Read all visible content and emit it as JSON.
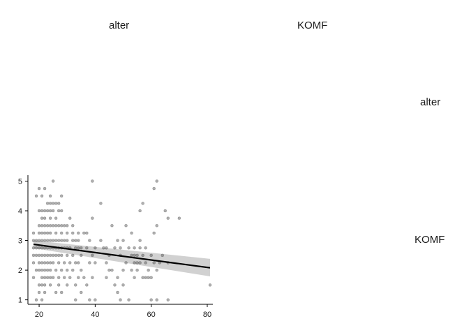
{
  "facets": {
    "column_labels": [
      "alter",
      "KOMF"
    ],
    "row_labels": [
      "alter",
      "KOMF"
    ]
  },
  "chart_data": {
    "type": "scatter",
    "title": "",
    "xlabel": "",
    "ylabel": "",
    "xlim": [
      16,
      82
    ],
    "ylim": [
      0.85,
      5.2
    ],
    "x_ticks": [
      20,
      40,
      60,
      80
    ],
    "y_ticks": [
      1,
      2,
      3,
      4,
      5
    ],
    "grid": false,
    "point_color": "#4d4d4d",
    "points": [
      [
        18,
        1.75
      ],
      [
        18,
        2.25
      ],
      [
        18,
        2.5
      ],
      [
        18,
        2.75
      ],
      [
        18,
        3
      ],
      [
        18,
        3.25
      ],
      [
        19,
        1
      ],
      [
        19,
        2
      ],
      [
        19,
        2.5
      ],
      [
        19,
        2.75
      ],
      [
        19,
        3
      ],
      [
        19,
        4.5
      ],
      [
        20,
        1.25
      ],
      [
        20,
        1.5
      ],
      [
        20,
        2
      ],
      [
        20,
        2.25
      ],
      [
        20,
        2.5
      ],
      [
        20,
        2.75
      ],
      [
        20,
        3
      ],
      [
        20,
        3.25
      ],
      [
        20,
        3.5
      ],
      [
        20,
        4
      ],
      [
        20,
        4.75
      ],
      [
        21,
        1
      ],
      [
        21,
        1.5
      ],
      [
        21,
        1.75
      ],
      [
        21,
        2
      ],
      [
        21,
        2.25
      ],
      [
        21,
        2.5
      ],
      [
        21,
        2.75
      ],
      [
        21,
        3
      ],
      [
        21,
        3.25
      ],
      [
        21,
        3.5
      ],
      [
        21,
        3.75
      ],
      [
        21,
        4
      ],
      [
        21,
        4.5
      ],
      [
        22,
        1.25
      ],
      [
        22,
        1.5
      ],
      [
        22,
        1.75
      ],
      [
        22,
        2
      ],
      [
        22,
        2.25
      ],
      [
        22,
        2.5
      ],
      [
        22,
        2.75
      ],
      [
        22,
        3
      ],
      [
        22,
        3.25
      ],
      [
        22,
        3.5
      ],
      [
        22,
        3.75
      ],
      [
        22,
        4
      ],
      [
        22,
        4.75
      ],
      [
        23,
        1.75
      ],
      [
        23,
        2
      ],
      [
        23,
        2.25
      ],
      [
        23,
        2.5
      ],
      [
        23,
        2.75
      ],
      [
        23,
        3
      ],
      [
        23,
        3.25
      ],
      [
        23,
        3.5
      ],
      [
        23,
        4
      ],
      [
        23,
        4.25
      ],
      [
        24,
        1.5
      ],
      [
        24,
        1.75
      ],
      [
        24,
        2
      ],
      [
        24,
        2.25
      ],
      [
        24,
        2.5
      ],
      [
        24,
        2.75
      ],
      [
        24,
        3
      ],
      [
        24,
        3.25
      ],
      [
        24,
        3.5
      ],
      [
        24,
        3.75
      ],
      [
        24,
        4
      ],
      [
        24,
        4.25
      ],
      [
        24,
        4.5
      ],
      [
        25,
        1.75
      ],
      [
        25,
        2.25
      ],
      [
        25,
        2.5
      ],
      [
        25,
        2.75
      ],
      [
        25,
        3
      ],
      [
        25,
        3.5
      ],
      [
        25,
        4
      ],
      [
        25,
        4.25
      ],
      [
        25,
        5
      ],
      [
        26,
        1.25
      ],
      [
        26,
        2
      ],
      [
        26,
        2.5
      ],
      [
        26,
        2.75
      ],
      [
        26,
        3
      ],
      [
        26,
        3.25
      ],
      [
        26,
        3.5
      ],
      [
        26,
        3.75
      ],
      [
        26,
        4.25
      ],
      [
        27,
        1.5
      ],
      [
        27,
        1.75
      ],
      [
        27,
        2.25
      ],
      [
        27,
        2.5
      ],
      [
        27,
        2.75
      ],
      [
        27,
        3
      ],
      [
        27,
        3.5
      ],
      [
        27,
        4
      ],
      [
        27,
        4.25
      ],
      [
        28,
        1.25
      ],
      [
        28,
        2
      ],
      [
        28,
        2.5
      ],
      [
        28,
        2.75
      ],
      [
        28,
        3
      ],
      [
        28,
        3.25
      ],
      [
        28,
        3.5
      ],
      [
        28,
        4
      ],
      [
        28,
        4.5
      ],
      [
        29,
        1.75
      ],
      [
        29,
        2.25
      ],
      [
        29,
        2.75
      ],
      [
        29,
        3
      ],
      [
        29,
        3.5
      ],
      [
        30,
        1.5
      ],
      [
        30,
        2
      ],
      [
        30,
        2.5
      ],
      [
        30,
        2.75
      ],
      [
        30,
        3
      ],
      [
        30,
        3.25
      ],
      [
        30,
        3.5
      ],
      [
        31,
        1.75
      ],
      [
        31,
        2.25
      ],
      [
        31,
        2.75
      ],
      [
        31,
        3.75
      ],
      [
        32,
        2
      ],
      [
        32,
        2.5
      ],
      [
        32,
        3
      ],
      [
        32,
        3.25
      ],
      [
        32,
        3.5
      ],
      [
        33,
        1
      ],
      [
        33,
        1.5
      ],
      [
        33,
        2.25
      ],
      [
        33,
        2.75
      ],
      [
        33,
        3
      ],
      [
        34,
        1.75
      ],
      [
        34,
        2.25
      ],
      [
        34,
        2.75
      ],
      [
        34,
        3
      ],
      [
        34,
        3.25
      ],
      [
        35,
        1.25
      ],
      [
        35,
        2
      ],
      [
        35,
        2.5
      ],
      [
        35,
        2.75
      ],
      [
        36,
        1.75
      ],
      [
        36,
        3.25
      ],
      [
        37,
        1.5
      ],
      [
        37,
        2.75
      ],
      [
        37,
        3.25
      ],
      [
        38,
        1
      ],
      [
        38,
        2.25
      ],
      [
        38,
        3
      ],
      [
        39,
        1.75
      ],
      [
        39,
        2.5
      ],
      [
        39,
        3.75
      ],
      [
        39,
        5
      ],
      [
        40,
        1
      ],
      [
        40,
        2.25
      ],
      [
        40,
        2.75
      ],
      [
        42,
        3
      ],
      [
        42,
        4.25
      ],
      [
        43,
        2.75
      ],
      [
        44,
        1.75
      ],
      [
        44,
        2.25
      ],
      [
        44,
        2.75
      ],
      [
        45,
        2
      ],
      [
        45,
        2.5
      ],
      [
        46,
        2
      ],
      [
        46,
        3.5
      ],
      [
        47,
        1.5
      ],
      [
        47,
        2.75
      ],
      [
        48,
        1.25
      ],
      [
        48,
        1.75
      ],
      [
        48,
        3
      ],
      [
        49,
        1
      ],
      [
        49,
        2.5
      ],
      [
        49,
        2.75
      ],
      [
        50,
        1.5
      ],
      [
        50,
        2
      ],
      [
        50,
        3
      ],
      [
        51,
        2.25
      ],
      [
        51,
        3.5
      ],
      [
        52,
        1
      ],
      [
        52,
        2.75
      ],
      [
        53,
        2
      ],
      [
        53,
        2.5
      ],
      [
        53,
        3.25
      ],
      [
        54,
        1.75
      ],
      [
        54,
        2.25
      ],
      [
        54,
        2.5
      ],
      [
        54,
        2.75
      ],
      [
        55,
        2
      ],
      [
        55,
        2.25
      ],
      [
        55,
        2.5
      ],
      [
        56,
        2.25
      ],
      [
        56,
        2.75
      ],
      [
        56,
        3
      ],
      [
        56,
        4
      ],
      [
        57,
        1.75
      ],
      [
        57,
        2.5
      ],
      [
        57,
        4.25
      ],
      [
        58,
        1.75
      ],
      [
        58,
        2.25
      ],
      [
        58,
        2.75
      ],
      [
        59,
        2
      ],
      [
        59,
        1.75
      ],
      [
        60,
        1
      ],
      [
        60,
        1.75
      ],
      [
        60,
        2.5
      ],
      [
        61,
        2.25
      ],
      [
        61,
        3.25
      ],
      [
        61,
        4.75
      ],
      [
        62,
        1
      ],
      [
        62,
        2
      ],
      [
        62,
        3.5
      ],
      [
        62,
        5
      ],
      [
        63,
        2.25
      ],
      [
        64,
        2.5
      ],
      [
        65,
        4
      ],
      [
        66,
        1
      ],
      [
        66,
        2.25
      ],
      [
        66,
        3.75
      ],
      [
        70,
        3.75
      ],
      [
        81,
        1.5
      ]
    ],
    "trend": {
      "type": "linear",
      "x": [
        18,
        81
      ],
      "y": [
        2.87,
        2.08
      ],
      "ci_lower": [
        2.74,
        1.79
      ],
      "ci_upper": [
        3.0,
        2.38
      ]
    }
  }
}
